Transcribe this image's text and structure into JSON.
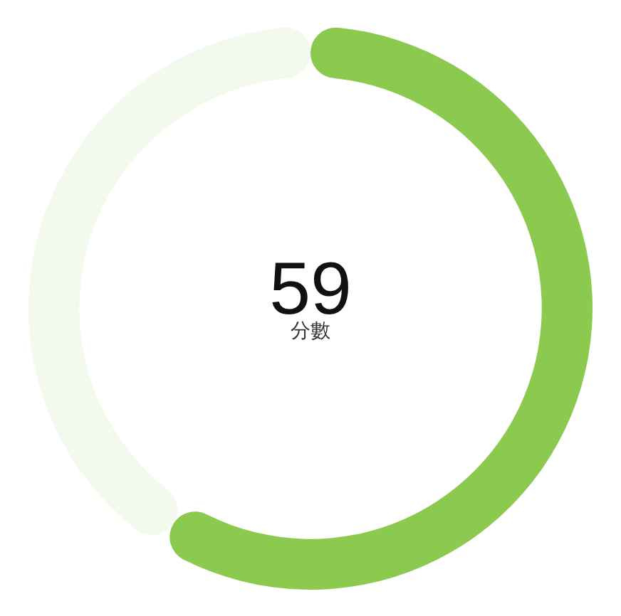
{
  "chart_data": {
    "type": "donut",
    "categories": [
      null,
      null
    ],
    "values": [
      59,
      41
    ],
    "colors": [
      "#8bc94f",
      "#f3f9ec"
    ],
    "value_labels": [
      "59",
      null
    ],
    "annotations": [
      "分數"
    ],
    "legend": false
  }
}
